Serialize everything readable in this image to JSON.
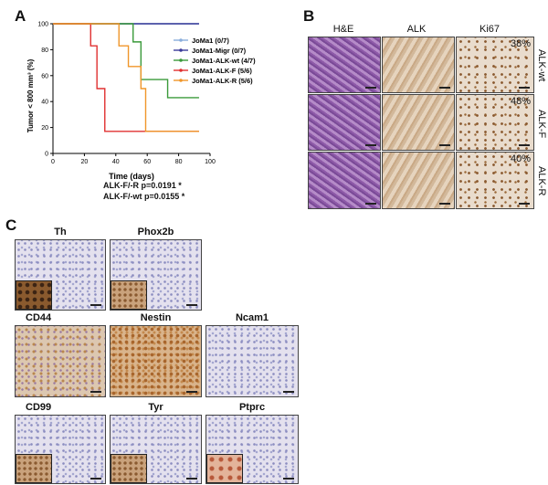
{
  "panel_a": {
    "letter": "A",
    "pvalues": [
      "ALK-F/-R p=0.0191 *",
      "ALK-F/-wt p=0.0155 *"
    ],
    "chart_data": {
      "type": "line",
      "xlabel": "Time (days)",
      "ylabel": "Tumor < 800 mm³ (%)",
      "xlim": [
        0,
        100
      ],
      "ylim": [
        0,
        100
      ],
      "xticks": [
        0,
        20,
        40,
        60,
        80,
        100
      ],
      "yticks": [
        0,
        20,
        40,
        60,
        80,
        100
      ],
      "legend_position": "right",
      "series": [
        {
          "name": "JoMa1 (0/7)",
          "color": "#8aaedc",
          "x": [
            0,
            93
          ],
          "y": [
            100,
            100
          ]
        },
        {
          "name": "JoMa1-Migr (0/7)",
          "color": "#3b3b9a",
          "x": [
            0,
            93
          ],
          "y": [
            100,
            100
          ]
        },
        {
          "name": "JoMa1-ALK-wt (4/7)",
          "color": "#3a9a3a",
          "x": [
            0,
            51,
            51,
            56,
            56,
            73,
            73,
            93
          ],
          "y": [
            100,
            100,
            86,
            86,
            57,
            57,
            43,
            43
          ]
        },
        {
          "name": "JoMa1-ALK-F (5/6)",
          "color": "#e03030",
          "x": [
            0,
            24,
            24,
            28,
            28,
            33,
            33,
            93
          ],
          "y": [
            100,
            100,
            83,
            83,
            50,
            50,
            17,
            17
          ]
        },
        {
          "name": "JoMa1-ALK-R (5/6)",
          "color": "#f0962a",
          "x": [
            0,
            42,
            42,
            48,
            48,
            56,
            56,
            59,
            59,
            93
          ],
          "y": [
            100,
            100,
            83,
            83,
            67,
            67,
            50,
            50,
            17,
            17
          ]
        }
      ]
    }
  },
  "panel_b": {
    "letter": "B",
    "col_titles": [
      "H&E",
      "ALK",
      "Ki67"
    ],
    "rows": [
      {
        "label": "ALK-wt",
        "ki67": "38%"
      },
      {
        "label": "ALK-F",
        "ki67": "48%"
      },
      {
        "label": "ALK-R",
        "ki67": "40%"
      }
    ]
  },
  "panel_c": {
    "letter": "C",
    "stains": [
      "Th",
      "Phox2b",
      "CD44",
      "Nestin",
      "Ncam1",
      "CD99",
      "Tyr",
      "Ptprc"
    ]
  }
}
